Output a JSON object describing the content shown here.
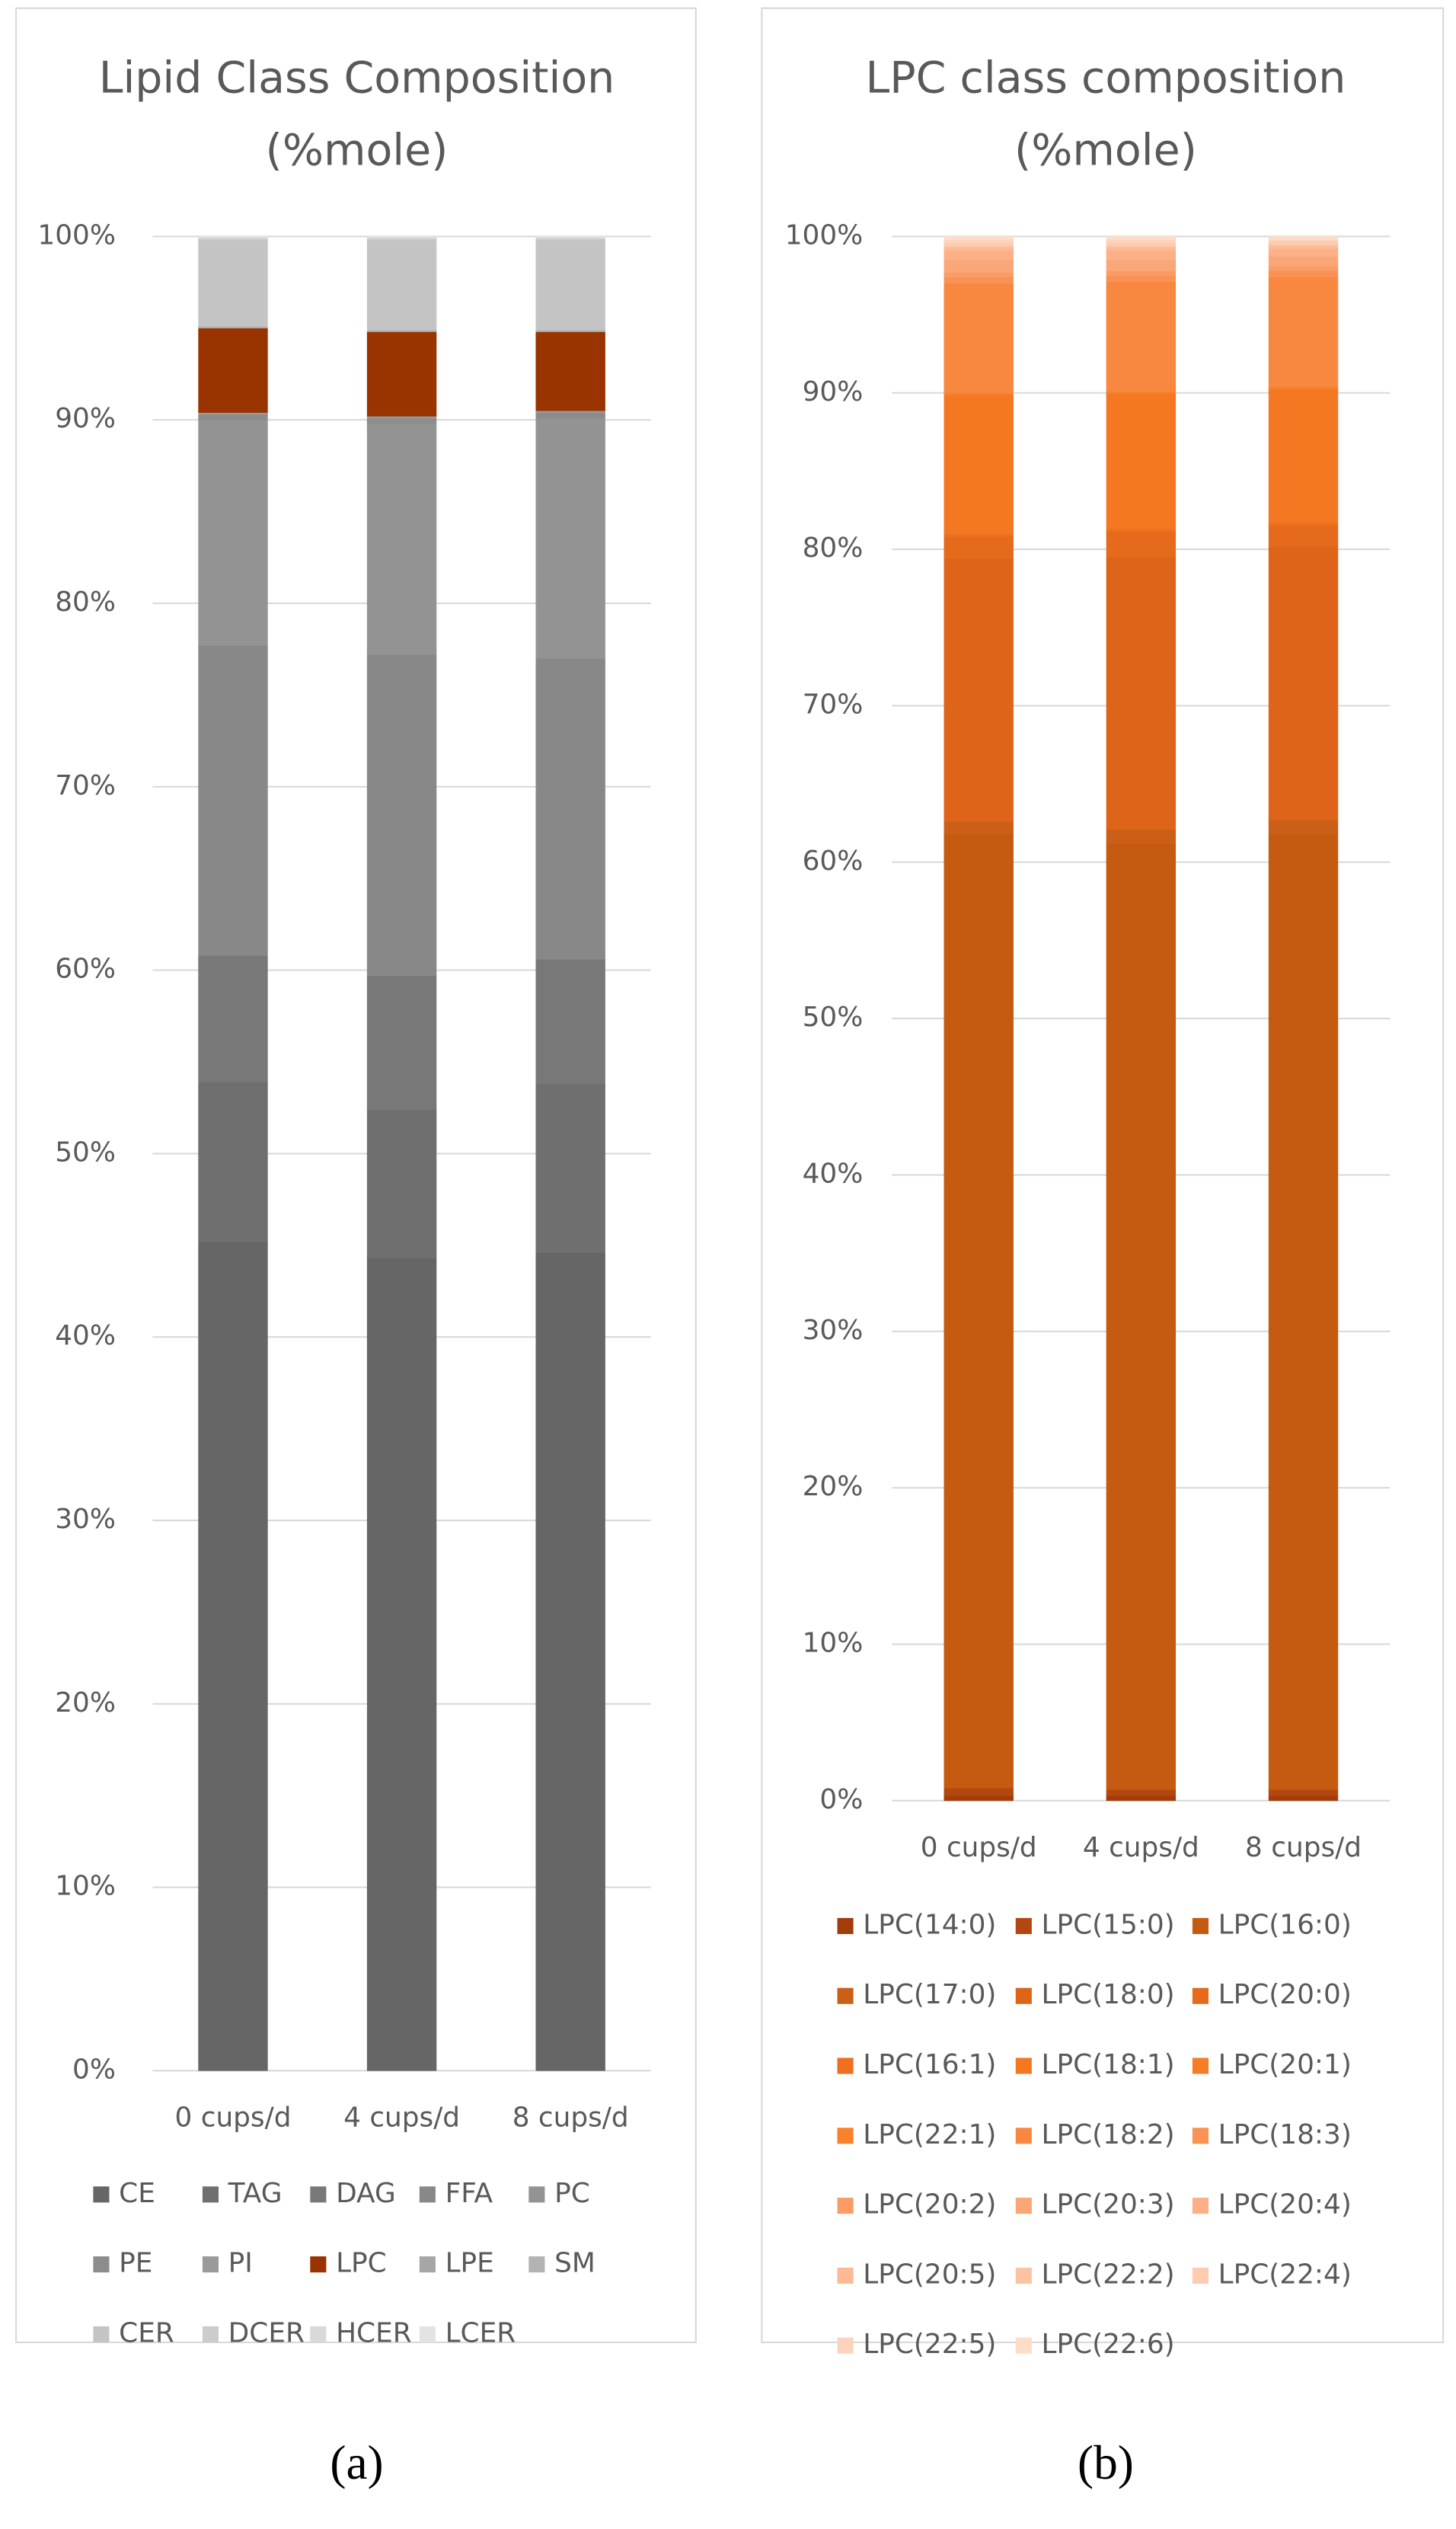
{
  "chart_data": [
    {
      "type": "stacked_bar",
      "panel_label": "(a)",
      "title_lines": [
        "Lipid Class Composition",
        "(%mole)"
      ],
      "categories": [
        "0 cups/d",
        "4 cups/d",
        "8 cups/d"
      ],
      "ylim": [
        0,
        100
      ],
      "yticks": [
        {
          "value": 0,
          "label": "0%"
        },
        {
          "value": 10,
          "label": "10%"
        },
        {
          "value": 20,
          "label": "20%"
        },
        {
          "value": 30,
          "label": "30%"
        },
        {
          "value": 40,
          "label": "40%"
        },
        {
          "value": 50,
          "label": "50%"
        },
        {
          "value": 60,
          "label": "60%"
        },
        {
          "value": 70,
          "label": "70%"
        },
        {
          "value": 80,
          "label": "80%"
        },
        {
          "value": 90,
          "label": "90%"
        },
        {
          "value": 100,
          "label": "100%"
        }
      ],
      "grid": true,
      "series": [
        {
          "name": "CE",
          "color": "#666666",
          "values": [
            45.2,
            44.3,
            44.6
          ]
        },
        {
          "name": "TAG",
          "color": "#6f6f6f",
          "values": [
            8.7,
            8.1,
            9.2
          ]
        },
        {
          "name": "DAG",
          "color": "#787878",
          "values": [
            6.9,
            7.3,
            6.8
          ]
        },
        {
          "name": "FFA",
          "color": "#888888",
          "values": [
            16.9,
            17.5,
            16.4
          ]
        },
        {
          "name": "PC",
          "color": "#939393",
          "values": [
            12.3,
            12.6,
            13.1
          ]
        },
        {
          "name": "PE",
          "color": "#8c8c8c",
          "values": [
            0.3,
            0.3,
            0.3
          ]
        },
        {
          "name": "PI",
          "color": "#9a9a9a",
          "values": [
            0.1,
            0.1,
            0.1
          ]
        },
        {
          "name": "LPC",
          "color": "#993300",
          "values": [
            4.6,
            4.6,
            4.3
          ]
        },
        {
          "name": "LPE",
          "color": "#a6a6a6",
          "values": [
            0.05,
            0.05,
            0.05
          ]
        },
        {
          "name": "SM",
          "color": "#b3b3b3",
          "values": [
            0.05,
            0.05,
            0.05
          ]
        },
        {
          "name": "CER",
          "color": "#c4c4c4",
          "values": [
            4.7,
            4.9,
            4.9
          ]
        },
        {
          "name": "DCER",
          "color": "#cccccc",
          "values": [
            0.1,
            0.1,
            0.1
          ]
        },
        {
          "name": "HCER",
          "color": "#d9d9d9",
          "values": [
            0.05,
            0.05,
            0.05
          ]
        },
        {
          "name": "LCER",
          "color": "#e3e3e3",
          "values": [
            0.05,
            0.05,
            0.05
          ]
        }
      ]
    },
    {
      "type": "stacked_bar",
      "panel_label": "(b)",
      "title_lines": [
        "LPC class composition",
        "(%mole)"
      ],
      "categories": [
        "0 cups/d",
        "4 cups/d",
        "8 cups/d"
      ],
      "ylim": [
        0,
        100
      ],
      "yticks": [
        {
          "value": 0,
          "label": "0%"
        },
        {
          "value": 10,
          "label": "10%"
        },
        {
          "value": 20,
          "label": "20%"
        },
        {
          "value": 30,
          "label": "30%"
        },
        {
          "value": 40,
          "label": "40%"
        },
        {
          "value": 50,
          "label": "50%"
        },
        {
          "value": 60,
          "label": "60%"
        },
        {
          "value": 70,
          "label": "70%"
        },
        {
          "value": 80,
          "label": "80%"
        },
        {
          "value": 90,
          "label": "90%"
        },
        {
          "value": 100,
          "label": "100%"
        }
      ],
      "grid": true,
      "series": [
        {
          "name": "LPC(14:0)",
          "color": "#a33b0a",
          "values": [
            0.3,
            0.3,
            0.3
          ]
        },
        {
          "name": "LPC(15:0)",
          "color": "#b24710",
          "values": [
            0.5,
            0.4,
            0.4
          ]
        },
        {
          "name": "LPC(16:0)",
          "color": "#c55a11",
          "values": [
            61.0,
            60.5,
            61.1
          ]
        },
        {
          "name": "LPC(17:0)",
          "color": "#cc5f18",
          "values": [
            0.8,
            0.9,
            0.9
          ]
        },
        {
          "name": "LPC(18:0)",
          "color": "#dd6418",
          "values": [
            16.8,
            17.4,
            17.5
          ]
        },
        {
          "name": "LPC(20:0)",
          "color": "#e56a1c",
          "values": [
            1.4,
            1.6,
            1.3
          ]
        },
        {
          "name": "LPC(16:1)",
          "color": "#ee6f1e",
          "values": [
            0.2,
            0.2,
            0.2
          ]
        },
        {
          "name": "LPC(18:1)",
          "color": "#f47722",
          "values": [
            8.8,
            8.6,
            8.5
          ]
        },
        {
          "name": "LPC(20:1)",
          "color": "#f57d25",
          "values": [
            0.1,
            0.1,
            0.1
          ]
        },
        {
          "name": "LPC(22:1)",
          "color": "#f7822a",
          "values": [
            0.1,
            0.1,
            0.1
          ]
        },
        {
          "name": "LPC(18:2)",
          "color": "#f8873f",
          "values": [
            7.0,
            7.0,
            7.0
          ]
        },
        {
          "name": "LPC(18:3)",
          "color": "#f99254",
          "values": [
            0.4,
            0.4,
            0.4
          ]
        },
        {
          "name": "LPC(20:2)",
          "color": "#f99c66",
          "values": [
            0.3,
            0.3,
            0.3
          ]
        },
        {
          "name": "LPC(20:3)",
          "color": "#faa676",
          "values": [
            0.8,
            0.7,
            0.6
          ]
        },
        {
          "name": "LPC(20:4)",
          "color": "#fbb087",
          "values": [
            0.6,
            0.6,
            0.5
          ]
        },
        {
          "name": "LPC(20:5)",
          "color": "#fbb994",
          "values": [
            0.2,
            0.2,
            0.2
          ]
        },
        {
          "name": "LPC(22:2)",
          "color": "#fcc2a2",
          "values": [
            0.1,
            0.1,
            0.1
          ]
        },
        {
          "name": "LPC(22:4)",
          "color": "#fdcbb0",
          "values": [
            0.2,
            0.2,
            0.2
          ]
        },
        {
          "name": "LPC(22:5)",
          "color": "#fdd3bd",
          "values": [
            0.2,
            0.2,
            0.1
          ]
        },
        {
          "name": "LPC(22:6)",
          "color": "#fedcca",
          "values": [
            0.2,
            0.2,
            0.2
          ]
        }
      ]
    }
  ]
}
